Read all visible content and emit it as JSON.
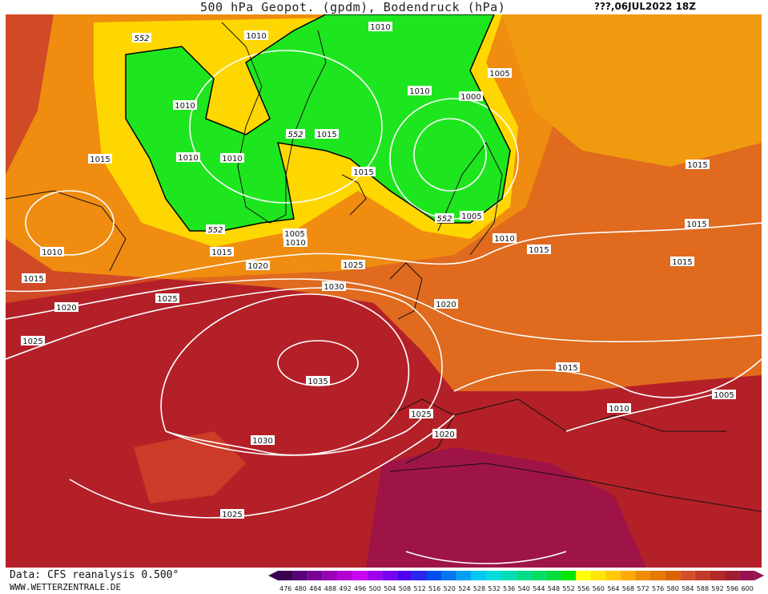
{
  "header": {
    "title": "500 hPa Geopot. (gpdm), Bodendruck (hPa)",
    "date": "???,06JUL2022 18Z"
  },
  "footer": {
    "source": "Data: CFS reanalysis 0.500°",
    "site": "WWW.WETTERZENTRALE.DE"
  },
  "scale": {
    "values": [
      "476",
      "480",
      "484",
      "488",
      "492",
      "496",
      "500",
      "504",
      "508",
      "512",
      "516",
      "520",
      "524",
      "528",
      "532",
      "536",
      "540",
      "544",
      "548",
      "552",
      "556",
      "560",
      "564",
      "568",
      "572",
      "576",
      "580",
      "584",
      "588",
      "592",
      "596",
      "600"
    ],
    "colors": [
      "#3c0050",
      "#5a0078",
      "#7a0096",
      "#9a00b4",
      "#b400d2",
      "#c800f0",
      "#a000f0",
      "#7800f0",
      "#5000f0",
      "#2828f0",
      "#0050f0",
      "#0078f0",
      "#00a0f0",
      "#00c8f0",
      "#00dcdc",
      "#00dcb4",
      "#00dc8c",
      "#00dc64",
      "#00dc3c",
      "#00e600",
      "#ffff00",
      "#ffe600",
      "#ffc800",
      "#ffaa00",
      "#f08c00",
      "#e67800",
      "#dc6400",
      "#d25028",
      "#c03c28",
      "#b42828",
      "#a01e32",
      "#961450"
    ]
  },
  "geopotential_labels": [
    "552",
    "552",
    "552",
    "552"
  ],
  "isobar_labels": [
    "1010",
    "1010",
    "1010",
    "1010",
    "1010",
    "1010",
    "1010",
    "1010",
    "1010",
    "1010",
    "1015",
    "1015",
    "1015",
    "1015",
    "1015",
    "1015",
    "1015",
    "1015",
    "1015",
    "1015",
    "1005",
    "1005",
    "1005",
    "1005",
    "1000",
    "1020",
    "1020",
    "1020",
    "1020",
    "1025",
    "1025",
    "1025",
    "1025",
    "1025",
    "1030",
    "1030",
    "1035"
  ]
}
